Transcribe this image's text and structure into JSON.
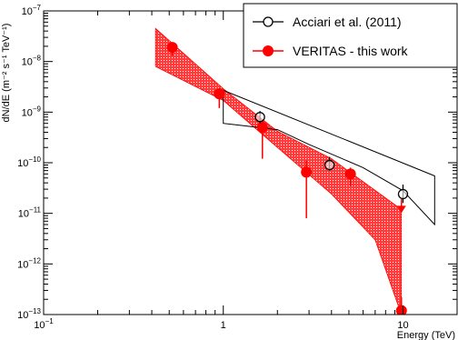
{
  "chart_data": {
    "type": "scatter",
    "xlabel": "Energy (TeV)",
    "ylabel": "dN/dE (m⁻² s⁻¹ TeV⁻¹)",
    "x_scale": "log",
    "y_scale": "log",
    "xlim": [
      0.1,
      20
    ],
    "ylim": [
      1e-13,
      1e-07
    ],
    "x_ticks": [
      {
        "value": 0.1,
        "base": "10",
        "exp": "−1"
      },
      {
        "value": 1,
        "base": "1",
        "exp": ""
      },
      {
        "value": 10,
        "base": "10",
        "exp": ""
      }
    ],
    "y_ticks": [
      {
        "value": 1e-13,
        "base": "10",
        "exp": "−13"
      },
      {
        "value": 1e-12,
        "base": "10",
        "exp": "−12"
      },
      {
        "value": 1e-11,
        "base": "10",
        "exp": "−11"
      },
      {
        "value": 1e-10,
        "base": "10",
        "exp": "−10"
      },
      {
        "value": 1e-09,
        "base": "10",
        "exp": "−9"
      },
      {
        "value": 1e-08,
        "base": "10",
        "exp": "−8"
      },
      {
        "value": 1e-07,
        "base": "10",
        "exp": "−7"
      }
    ],
    "legend_position": "top-right",
    "series": [
      {
        "name": "Acciari et al. (2011)",
        "color": "#000000",
        "marker": "open-circle",
        "points": [
          {
            "x": 1.6,
            "y": 8e-10,
            "ylo": 6e-10,
            "yhi": 1.05e-09
          },
          {
            "x": 3.9,
            "y": 9e-11,
            "ylo": 7e-11,
            "yhi": 1.3e-10
          },
          {
            "x": 10.0,
            "y": 2.4e-11,
            "ylo": 1.6e-11,
            "yhi": 3.7e-11
          }
        ],
        "band": {
          "upper": [
            [
              1.0,
              2.7e-09
            ],
            [
              15.0,
              5.5e-11
            ]
          ],
          "lower": [
            [
              1.0,
              6e-10
            ],
            [
              1.0,
              6e-10
            ],
            [
              2.0,
              4.5e-10
            ],
            [
              4.0,
              1.1e-10
            ],
            [
              10.0,
              1.5e-11
            ],
            [
              15.0,
              6e-12
            ]
          ],
          "lower_path": [
            [
              1.0,
              6e-10
            ],
            [
              2.0,
              4.5e-10
            ],
            [
              3.0,
              2.3e-10
            ],
            [
              6.0,
              8e-11
            ],
            [
              10.0,
              2.8e-11
            ],
            [
              15.0,
              6e-12
            ]
          ],
          "left_top": [
            1.0,
            2.7e-09
          ]
        }
      },
      {
        "name": "VERITAS - this work",
        "color": "#ff0000",
        "marker": "filled-circle",
        "points": [
          {
            "x": 0.52,
            "y": 1.9e-08,
            "ylo": 1.3e-08,
            "yhi": 2.4e-08
          },
          {
            "x": 0.95,
            "y": 2.3e-09,
            "ylo": 1.2e-09,
            "yhi": 3e-09
          },
          {
            "x": 1.65,
            "y": 5e-10,
            "ylo": 1.2e-10,
            "yhi": 7e-10
          },
          {
            "x": 2.9,
            "y": 6.5e-11,
            "ylo": 8e-12,
            "yhi": 1.1e-10
          },
          {
            "x": 5.1,
            "y": 6e-11,
            "ylo": 3.5e-11,
            "yhi": 8e-11
          },
          {
            "x": 9.8,
            "y": 1.2e-13,
            "ylo": 7e-14,
            "yhi": 2.2e-13
          }
        ],
        "upper_limits": [
          {
            "x": 9.8,
            "y": 1.9e-11,
            "ylo": 1.1e-11
          }
        ],
        "band": {
          "upper": [
            [
              0.42,
              4.5e-08
            ],
            [
              1.0,
              2.9e-09
            ],
            [
              2.0,
              4.2e-10
            ],
            [
              4.0,
              1.2e-10
            ],
            [
              9.8,
              1.2e-11
            ]
          ],
          "lower": [
            [
              0.42,
              8e-09
            ],
            [
              1.0,
              1.7e-09
            ],
            [
              2.0,
              2e-10
            ],
            [
              4.0,
              2.4e-11
            ],
            [
              7.0,
              3e-12
            ],
            [
              9.8,
              1e-13
            ]
          ]
        }
      }
    ]
  }
}
